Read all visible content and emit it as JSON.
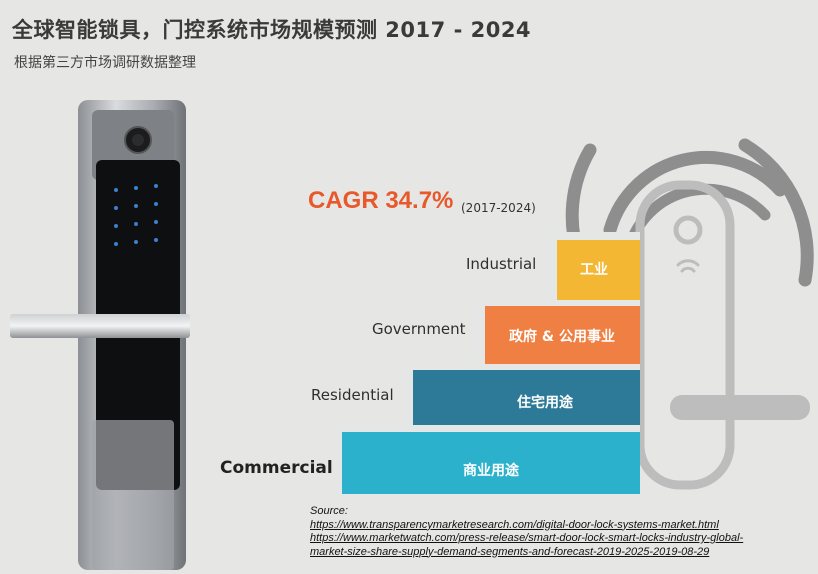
{
  "header": {
    "title": "全球智能锁具，门控系统市场规模预测 2017 - 2024",
    "subtitle": "根据第三方市场调研数据整理"
  },
  "cagr": {
    "value": "CAGR 34.7%",
    "years": "(2017-2024)"
  },
  "segments": [
    {
      "en": "Industrial",
      "zh": "工业",
      "color": "#f4b733"
    },
    {
      "en": "Government",
      "zh": "政府 & 公用事业",
      "color": "#ef7f43"
    },
    {
      "en": "Residential",
      "zh": "住宅用途",
      "color": "#2d7a98"
    },
    {
      "en": "Commercial",
      "zh": "商业用途",
      "color": "#2bb1cc"
    }
  ],
  "source": {
    "label": "Source:",
    "links": [
      "https://www.transparencymarketresearch.com/digital-door-lock-systems-market.html",
      "https://www.marketwatch.com/press-release/smart-door-lock-smart-locks-industry-global-",
      "market-size-share-supply-demand-segments-and-forecast-2019-2025-2019-08-29"
    ]
  }
}
